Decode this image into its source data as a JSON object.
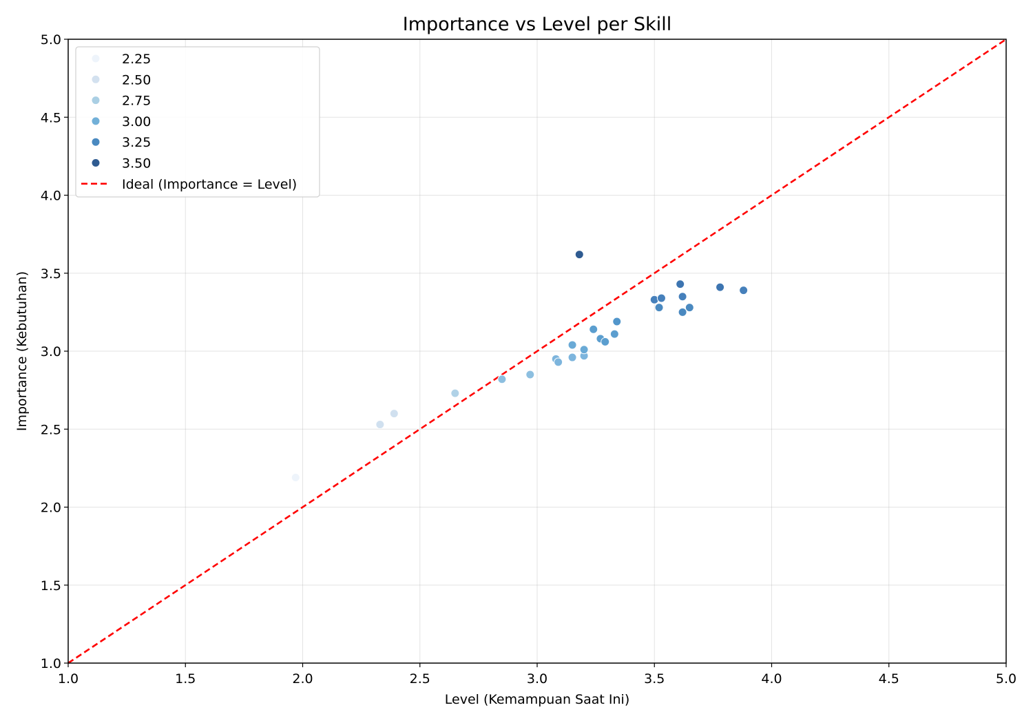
{
  "chart_data": {
    "type": "scatter",
    "title": "Importance vs Level per Skill",
    "xlabel": "Level (Kemampuan Saat Ini)",
    "ylabel": "Importance (Kebutuhan)",
    "xlim": [
      1.0,
      5.0
    ],
    "ylim": [
      1.0,
      5.0
    ],
    "x_ticks": [
      "1.0",
      "1.5",
      "2.0",
      "2.5",
      "3.0",
      "3.5",
      "4.0",
      "4.5",
      "5.0"
    ],
    "y_ticks": [
      "1.0",
      "1.5",
      "2.0",
      "2.5",
      "3.0",
      "3.5",
      "4.0",
      "4.5",
      "5.0"
    ],
    "grid": true,
    "legend_position": "top-left",
    "hue_legend": [
      {
        "label": "2.25",
        "color": "#eef4fb"
      },
      {
        "label": "2.50",
        "color": "#d3e1ef"
      },
      {
        "label": "2.75",
        "color": "#aacfe4"
      },
      {
        "label": "3.00",
        "color": "#72b0d8"
      },
      {
        "label": "3.25",
        "color": "#4a89c0"
      },
      {
        "label": "3.50",
        "color": "#2f5b91"
      }
    ],
    "reference_line": {
      "label": "Ideal (Importance = Level)",
      "color": "#ff0000",
      "style": "dashed",
      "from": [
        1.0,
        1.0
      ],
      "to": [
        5.0,
        5.0
      ]
    },
    "points": [
      {
        "x": 1.97,
        "y": 2.19,
        "color": "#eef4fb"
      },
      {
        "x": 2.33,
        "y": 2.53,
        "color": "#d0e0ef"
      },
      {
        "x": 2.39,
        "y": 2.6,
        "color": "#d0e0ef"
      },
      {
        "x": 2.65,
        "y": 2.73,
        "color": "#b0d2e7"
      },
      {
        "x": 2.85,
        "y": 2.82,
        "color": "#8dbfe0"
      },
      {
        "x": 2.97,
        "y": 2.85,
        "color": "#8dbfe0"
      },
      {
        "x": 3.08,
        "y": 2.95,
        "color": "#7db5dd"
      },
      {
        "x": 3.09,
        "y": 2.93,
        "color": "#7db5dd"
      },
      {
        "x": 3.15,
        "y": 2.96,
        "color": "#7db5dd"
      },
      {
        "x": 3.15,
        "y": 3.04,
        "color": "#6aaad6"
      },
      {
        "x": 3.2,
        "y": 2.97,
        "color": "#7db5dd"
      },
      {
        "x": 3.2,
        "y": 3.01,
        "color": "#6aaad6"
      },
      {
        "x": 3.24,
        "y": 3.14,
        "color": "#5b9ecf"
      },
      {
        "x": 3.27,
        "y": 3.08,
        "color": "#5b9ecf"
      },
      {
        "x": 3.29,
        "y": 3.06,
        "color": "#5b9ecf"
      },
      {
        "x": 3.33,
        "y": 3.11,
        "color": "#5b9ecf"
      },
      {
        "x": 3.34,
        "y": 3.19,
        "color": "#5296cb"
      },
      {
        "x": 3.18,
        "y": 3.62,
        "color": "#2f5b91"
      },
      {
        "x": 3.5,
        "y": 3.33,
        "color": "#4680bb"
      },
      {
        "x": 3.52,
        "y": 3.28,
        "color": "#4a89c0"
      },
      {
        "x": 3.53,
        "y": 3.34,
        "color": "#4680bb"
      },
      {
        "x": 3.61,
        "y": 3.43,
        "color": "#3d75b1"
      },
      {
        "x": 3.62,
        "y": 3.35,
        "color": "#4680bb"
      },
      {
        "x": 3.62,
        "y": 3.25,
        "color": "#4a89c0"
      },
      {
        "x": 3.65,
        "y": 3.28,
        "color": "#4a89c0"
      },
      {
        "x": 3.78,
        "y": 3.41,
        "color": "#3d75b1"
      },
      {
        "x": 3.88,
        "y": 3.39,
        "color": "#4680bb"
      }
    ]
  }
}
